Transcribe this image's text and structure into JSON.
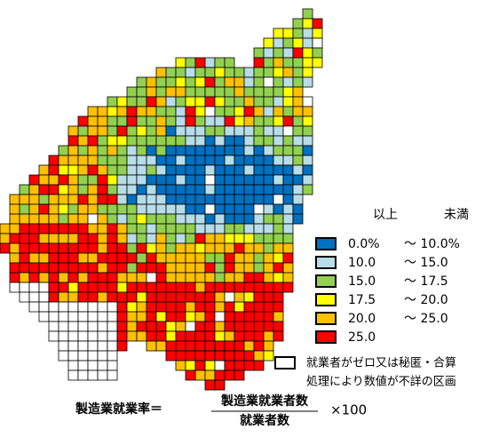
{
  "legend": {
    "header_from": "以上",
    "header_to": "未満",
    "items": [
      {
        "color": "#0070c0",
        "from": "0.0%",
        "to": "～ 10.0%"
      },
      {
        "color": "#b7dde8",
        "from": "10.0",
        "to": "～ 15.0"
      },
      {
        "color": "#92d050",
        "from": "15.0",
        "to": "～ 17.5"
      },
      {
        "color": "#ffff00",
        "from": "17.5",
        "to": "～ 20.0"
      },
      {
        "color": "#ffc000",
        "from": "20.0",
        "to": "～ 25.0"
      },
      {
        "color": "#ff0000",
        "from": "25.0"
      }
    ],
    "blank_note": [
      "就業者がゼロ又は秘匿・合算",
      "処理により数値が不詳の区画"
    ]
  },
  "formula": {
    "lhs": "製造業就業率＝",
    "numerator": "製造業就業者数",
    "denominator": "就業者数",
    "multiplier": "×100"
  }
}
